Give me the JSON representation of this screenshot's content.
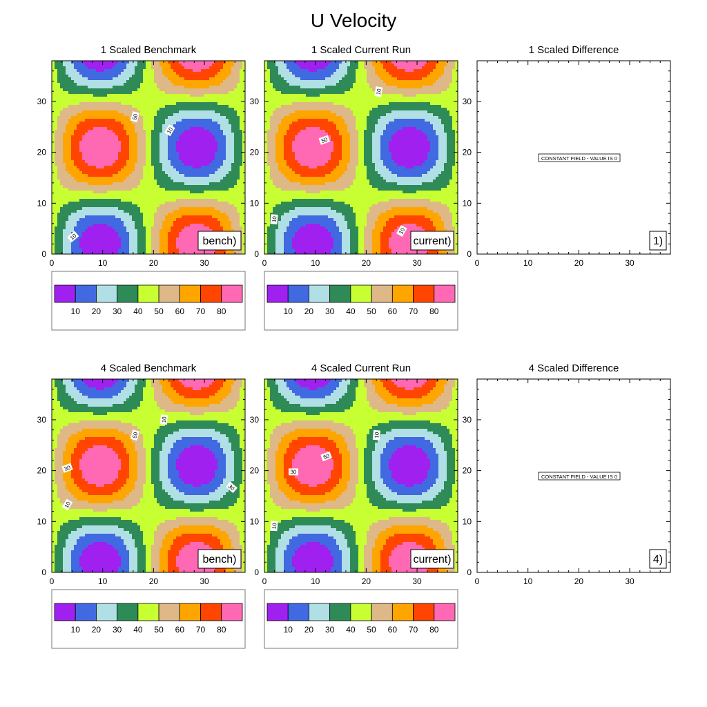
{
  "figure": {
    "title": "U Velocity"
  },
  "chart_data": [
    {
      "type": "contour",
      "title": "1 Scaled Benchmark",
      "label": "bench)",
      "x_ticks": [
        0,
        10,
        20,
        30
      ],
      "y_ticks": [
        0,
        10,
        20,
        30
      ],
      "xlim": [
        0,
        38
      ],
      "ylim": [
        0,
        38
      ],
      "contour_labels": [
        "50",
        "10",
        "10"
      ],
      "colorbar": {
        "levels": [
          10,
          20,
          30,
          40,
          50,
          60,
          70,
          80
        ]
      }
    },
    {
      "type": "contour",
      "title": "1 Scaled Current Run",
      "label": "current)",
      "x_ticks": [
        0,
        10,
        20,
        30
      ],
      "y_ticks": [
        0,
        10,
        20,
        30
      ],
      "xlim": [
        0,
        38
      ],
      "ylim": [
        0,
        38
      ],
      "contour_labels": [
        "10",
        "50",
        "10",
        "10"
      ],
      "colorbar": {
        "levels": [
          10,
          20,
          30,
          40,
          50,
          60,
          70,
          80
        ]
      }
    },
    {
      "type": "contour",
      "title": "1 Scaled Difference",
      "label": "1)",
      "x_ticks": [
        0,
        10,
        20,
        30
      ],
      "y_ticks": [
        0,
        10,
        20,
        30
      ],
      "xlim": [
        0,
        38
      ],
      "ylim": [
        0,
        38
      ],
      "note": "CONSTANT FIELD - VALUE IS 0"
    },
    {
      "type": "contour",
      "title": "4 Scaled Benchmark",
      "label": "bench)",
      "x_ticks": [
        0,
        10,
        20,
        30
      ],
      "y_ticks": [
        0,
        10,
        20,
        30
      ],
      "xlim": [
        0,
        38
      ],
      "ylim": [
        0,
        38
      ],
      "contour_labels": [
        "10",
        "50",
        "30",
        "30",
        "10"
      ],
      "colorbar": {
        "levels": [
          10,
          20,
          30,
          40,
          50,
          60,
          70,
          80
        ]
      }
    },
    {
      "type": "contour",
      "title": "4 Scaled Current Run",
      "label": "current)",
      "x_ticks": [
        0,
        10,
        20,
        30
      ],
      "y_ticks": [
        0,
        10,
        20,
        30
      ],
      "xlim": [
        0,
        38
      ],
      "ylim": [
        0,
        38
      ],
      "contour_labels": [
        "10",
        "50",
        "30",
        "10"
      ],
      "colorbar": {
        "levels": [
          10,
          20,
          30,
          40,
          50,
          60,
          70,
          80
        ]
      }
    },
    {
      "type": "contour",
      "title": "4 Scaled Difference",
      "label": "4)",
      "x_ticks": [
        0,
        10,
        20,
        30
      ],
      "y_ticks": [
        0,
        10,
        20,
        30
      ],
      "xlim": [
        0,
        38
      ],
      "ylim": [
        0,
        38
      ],
      "note": "CONSTANT FIELD - VALUE IS 0"
    }
  ],
  "palette": [
    "#a020f0",
    "#4169e1",
    "#b0e0e6",
    "#2e8b57",
    "#c8ff32",
    "#deb887",
    "#ffa500",
    "#ff4500",
    "#ff69b4"
  ]
}
